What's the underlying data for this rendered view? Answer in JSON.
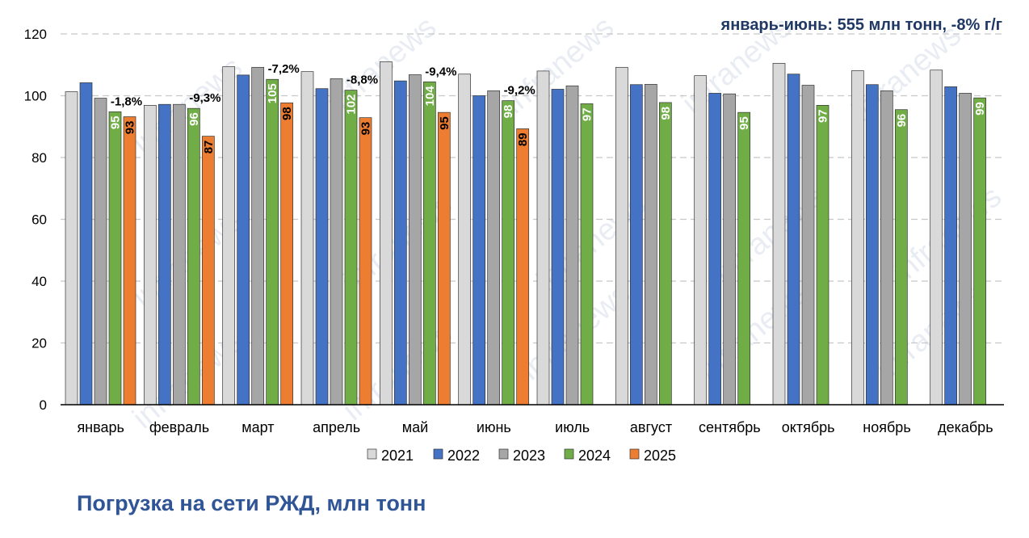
{
  "chart_data": {
    "type": "bar",
    "title": "Погрузка на сети РЖД, млн тонн",
    "subtitle": "январь-июнь: 555 млн тонн, -8% г/г",
    "categories": [
      "январь",
      "февраль",
      "март",
      "апрель",
      "май",
      "июнь",
      "июль",
      "август",
      "сентябрь",
      "октябрь",
      "ноябрь",
      "декабрь"
    ],
    "ylim": [
      0,
      120
    ],
    "yticks": [
      0,
      20,
      40,
      60,
      80,
      100,
      120
    ],
    "grid": true,
    "legend_position": "bottom",
    "series": [
      {
        "name": "2021",
        "color": "#d9d9d9",
        "values": [
          101.3,
          96.9,
          109.4,
          107.8,
          111.0,
          107.0,
          108.0,
          109.2,
          106.5,
          110.5,
          108.1,
          108.3
        ]
      },
      {
        "name": "2022",
        "color": "#4472c4",
        "values": [
          104.2,
          97.2,
          106.7,
          102.3,
          104.8,
          100.0,
          102.1,
          103.6,
          100.8,
          107.0,
          103.6,
          102.9
        ]
      },
      {
        "name": "2023",
        "color": "#a6a6a6",
        "values": [
          99.2,
          97.2,
          109.2,
          105.5,
          106.8,
          101.6,
          103.2,
          103.7,
          100.6,
          103.4,
          101.6,
          100.8
        ]
      },
      {
        "name": "2024",
        "color": "#70ad47",
        "values": [
          94.8,
          95.9,
          105.3,
          101.8,
          104.5,
          98.4,
          97.4,
          97.8,
          94.6,
          96.9,
          95.5,
          99.3
        ],
        "labels": [
          "95",
          "96",
          "105",
          "102",
          "104",
          "98",
          "97",
          "98",
          "95",
          "97",
          "96",
          "99"
        ]
      },
      {
        "name": "2025",
        "color": "#ed7d31",
        "values": [
          93.2,
          86.9,
          97.7,
          92.9,
          94.6,
          89.3,
          null,
          null,
          null,
          null,
          null,
          null
        ],
        "labels": [
          "93",
          "87",
          "98",
          "93",
          "95",
          "89",
          "",
          "",
          "",
          "",
          "",
          ""
        ]
      }
    ],
    "yoy_labels": [
      "-1,8%",
      "-9,3%",
      "-7,2%",
      "-8,8%",
      "-9,4%",
      "-9,2%",
      "",
      "",
      "",
      "",
      "",
      ""
    ]
  },
  "watermark": "infranews"
}
